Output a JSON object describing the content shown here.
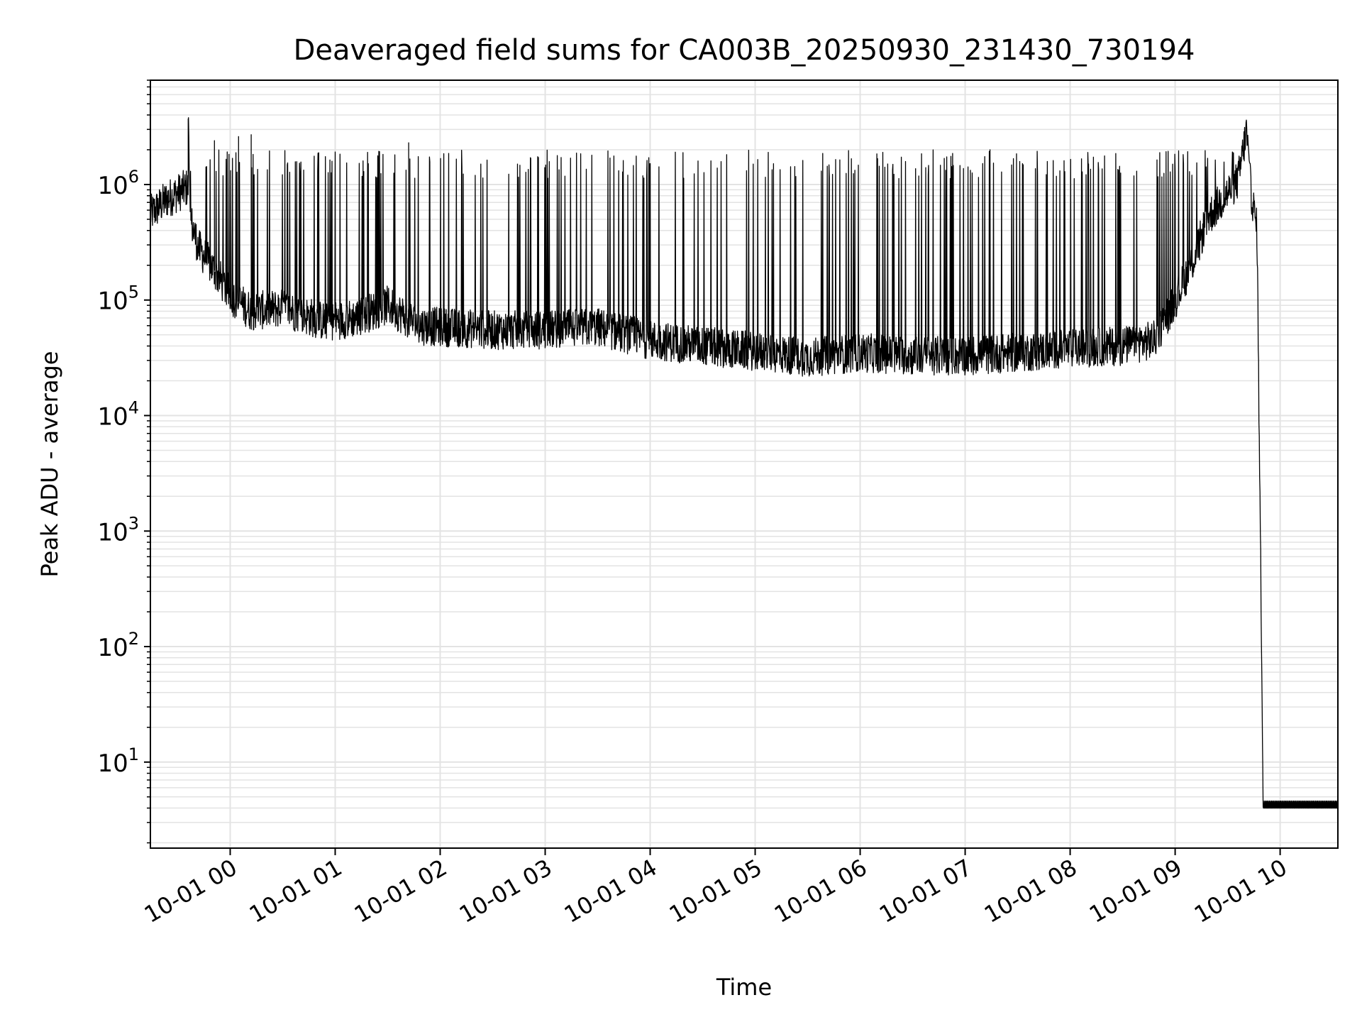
{
  "chart_data": {
    "type": "line",
    "title": "Deaveraged field sums for CA003B_20250930_231430_730194",
    "xlabel": "Time",
    "ylabel": "Peak ADU - average",
    "yscale": "log",
    "ylim": [
      1.8,
      8000000
    ],
    "xlim_hours_rel_0000": [
      -0.76,
      10.55
    ],
    "grid": true,
    "line_color": "#000000",
    "grid_color": "#e3e3e3",
    "x_ticks": [
      {
        "hour": 0,
        "label": "10-01 00"
      },
      {
        "hour": 1,
        "label": "10-01 01"
      },
      {
        "hour": 2,
        "label": "10-01 02"
      },
      {
        "hour": 3,
        "label": "10-01 03"
      },
      {
        "hour": 4,
        "label": "10-01 04"
      },
      {
        "hour": 5,
        "label": "10-01 05"
      },
      {
        "hour": 6,
        "label": "10-01 06"
      },
      {
        "hour": 7,
        "label": "10-01 07"
      },
      {
        "hour": 8,
        "label": "10-01 08"
      },
      {
        "hour": 9,
        "label": "10-01 09"
      },
      {
        "hour": 10,
        "label": "10-01 10"
      }
    ],
    "y_ticks": [
      {
        "exp": 1,
        "base": "10",
        "sup": "1"
      },
      {
        "exp": 2,
        "base": "10",
        "sup": "2"
      },
      {
        "exp": 3,
        "base": "10",
        "sup": "3"
      },
      {
        "exp": 4,
        "base": "10",
        "sup": "4"
      },
      {
        "exp": 5,
        "base": "10",
        "sup": "5"
      },
      {
        "exp": 6,
        "base": "10",
        "sup": "6"
      }
    ],
    "series": [
      {
        "name": "deaveraged field sum",
        "baseline_points": [
          {
            "t": -0.76,
            "v": 550000
          },
          {
            "t": -0.6,
            "v": 750000
          },
          {
            "t": -0.4,
            "v": 950000
          },
          {
            "t": -0.4,
            "v": 3700000
          },
          {
            "t": -0.38,
            "v": 500000
          },
          {
            "t": -0.3,
            "v": 280000
          },
          {
            "t": -0.15,
            "v": 180000
          },
          {
            "t": 0.0,
            "v": 110000
          },
          {
            "t": 0.2,
            "v": 80000
          },
          {
            "t": 0.5,
            "v": 85000
          },
          {
            "t": 0.9,
            "v": 65000
          },
          {
            "t": 1.2,
            "v": 70000
          },
          {
            "t": 1.5,
            "v": 90000
          },
          {
            "t": 1.8,
            "v": 60000
          },
          {
            "t": 2.5,
            "v": 55000
          },
          {
            "t": 3.0,
            "v": 55000
          },
          {
            "t": 3.5,
            "v": 58000
          },
          {
            "t": 4.0,
            "v": 45000
          },
          {
            "t": 4.5,
            "v": 40000
          },
          {
            "t": 5.0,
            "v": 36000
          },
          {
            "t": 5.5,
            "v": 32000
          },
          {
            "t": 6.0,
            "v": 35000
          },
          {
            "t": 6.5,
            "v": 33000
          },
          {
            "t": 7.0,
            "v": 33000
          },
          {
            "t": 7.5,
            "v": 35000
          },
          {
            "t": 8.0,
            "v": 38000
          },
          {
            "t": 8.5,
            "v": 40000
          },
          {
            "t": 8.8,
            "v": 45000
          },
          {
            "t": 9.0,
            "v": 100000
          },
          {
            "t": 9.2,
            "v": 250000
          },
          {
            "t": 9.3,
            "v": 500000
          },
          {
            "t": 9.6,
            "v": 1100000
          },
          {
            "t": 9.68,
            "v": 2900000
          },
          {
            "t": 9.72,
            "v": 900000
          },
          {
            "t": 9.78,
            "v": 400000
          },
          {
            "t": 9.84,
            "v": 4
          },
          {
            "t": 10.55,
            "v": 4
          }
        ],
        "spike_peak_typical": 1500000,
        "spike_window_hours": [
          -0.4,
          9.8
        ]
      }
    ]
  }
}
